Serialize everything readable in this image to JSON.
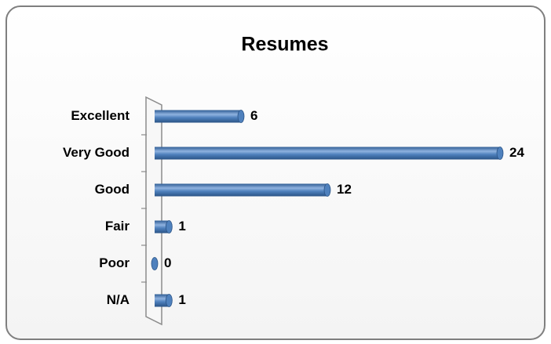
{
  "chart_data": {
    "type": "bar",
    "orientation": "horizontal",
    "title": "Resumes",
    "categories": [
      "Excellent",
      "Very Good",
      "Good",
      "Fair",
      "Poor",
      "N/A"
    ],
    "values": [
      6,
      24,
      12,
      1,
      0,
      1
    ],
    "color": "#4f81bd"
  }
}
